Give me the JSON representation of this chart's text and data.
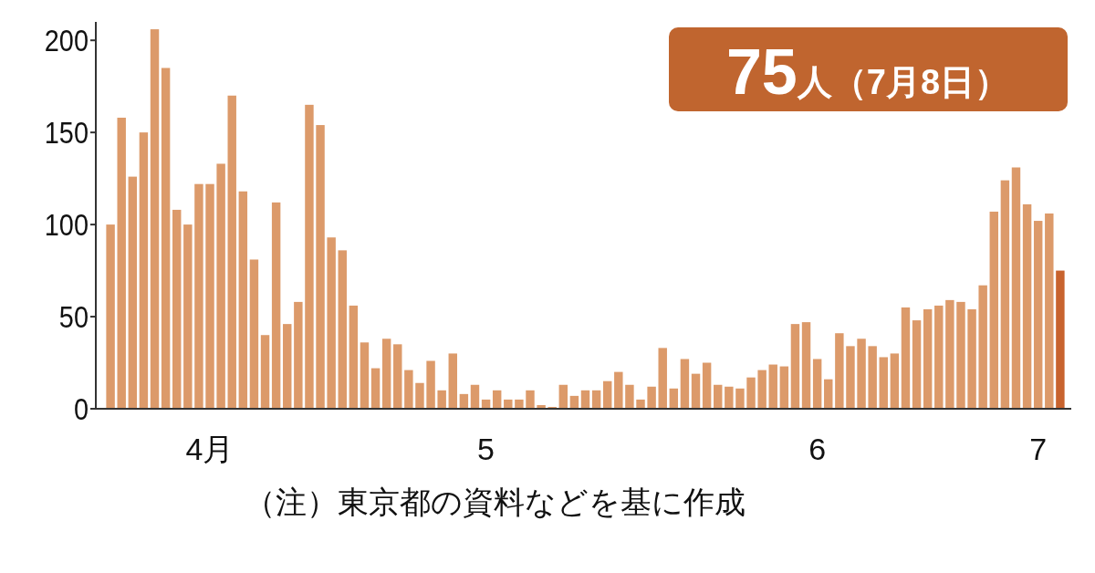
{
  "chart_data": {
    "type": "bar",
    "categories": [
      null,
      null,
      null,
      null,
      null,
      null,
      null,
      null,
      null,
      "4月",
      null,
      null,
      null,
      null,
      null,
      null,
      null,
      null,
      null,
      null,
      null,
      null,
      null,
      null,
      null,
      null,
      null,
      null,
      null,
      null,
      null,
      null,
      null,
      null,
      "5",
      null,
      null,
      null,
      null,
      null,
      null,
      null,
      null,
      null,
      null,
      null,
      null,
      null,
      null,
      null,
      null,
      null,
      null,
      null,
      null,
      null,
      null,
      null,
      null,
      null,
      null,
      null,
      null,
      null,
      "6",
      null,
      null,
      null,
      null,
      null,
      null,
      null,
      null,
      null,
      null,
      null,
      null,
      null,
      null,
      null,
      null,
      null,
      null,
      null,
      "7",
      null,
      null
    ],
    "values": [
      100,
      158,
      126,
      150,
      206,
      185,
      108,
      100,
      122,
      122,
      133,
      170,
      118,
      81,
      40,
      112,
      46,
      58,
      165,
      154,
      93,
      86,
      56,
      36,
      22,
      38,
      35,
      21,
      14,
      26,
      10,
      30,
      8,
      13,
      5,
      10,
      5,
      5,
      10,
      2,
      1,
      13,
      7,
      10,
      10,
      15,
      20,
      13,
      5,
      12,
      33,
      11,
      27,
      19,
      25,
      13,
      12,
      11,
      17,
      21,
      24,
      23,
      46,
      47,
      27,
      16,
      41,
      34,
      38,
      34,
      28,
      30,
      55,
      48,
      54,
      56,
      59,
      58,
      54,
      67,
      107,
      124,
      131,
      111,
      102,
      106,
      75
    ],
    "colors": [
      "#dc9a6a",
      "#dc9a6a",
      "#dc9a6a",
      "#dc9a6a",
      "#dc9a6a",
      "#dc9a6a",
      "#dc9a6a",
      "#dc9a6a",
      "#dc9a6a",
      "#dc9a6a",
      "#dc9a6a",
      "#dc9a6a",
      "#dc9a6a",
      "#dc9a6a",
      "#dc9a6a",
      "#dc9a6a",
      "#dc9a6a",
      "#dc9a6a",
      "#dc9a6a",
      "#dc9a6a",
      "#dc9a6a",
      "#dc9a6a",
      "#dc9a6a",
      "#dc9a6a",
      "#dc9a6a",
      "#dc9a6a",
      "#dc9a6a",
      "#dc9a6a",
      "#dc9a6a",
      "#dc9a6a",
      "#dc9a6a",
      "#dc9a6a",
      "#dc9a6a",
      "#dc9a6a",
      "#dc9a6a",
      "#dc9a6a",
      "#dc9a6a",
      "#dc9a6a",
      "#dc9a6a",
      "#dc9a6a",
      "#dc9a6a",
      "#dc9a6a",
      "#dc9a6a",
      "#dc9a6a",
      "#dc9a6a",
      "#dc9a6a",
      "#dc9a6a",
      "#dc9a6a",
      "#dc9a6a",
      "#dc9a6a",
      "#dc9a6a",
      "#dc9a6a",
      "#dc9a6a",
      "#dc9a6a",
      "#dc9a6a",
      "#dc9a6a",
      "#dc9a6a",
      "#dc9a6a",
      "#dc9a6a",
      "#dc9a6a",
      "#dc9a6a",
      "#dc9a6a",
      "#dc9a6a",
      "#dc9a6a",
      "#dc9a6a",
      "#dc9a6a",
      "#dc9a6a",
      "#dc9a6a",
      "#dc9a6a",
      "#dc9a6a",
      "#dc9a6a",
      "#dc9a6a",
      "#dc9a6a",
      "#dc9a6a",
      "#dc9a6a",
      "#dc9a6a",
      "#dc9a6a",
      "#dc9a6a",
      "#dc9a6a",
      "#dc9a6a",
      "#dc9a6a",
      "#dc9a6a",
      "#dc9a6a",
      "#dc9a6a",
      "#dc9a6a",
      "#dc9a6a",
      "#c8632e"
    ],
    "ylim": [
      0,
      210
    ],
    "yticks": [
      0,
      50,
      100,
      150,
      200
    ],
    "grid": false,
    "annotations": [
      "75人（7月8日）",
      "（注）東京都の資料などを基に作成"
    ]
  }
}
